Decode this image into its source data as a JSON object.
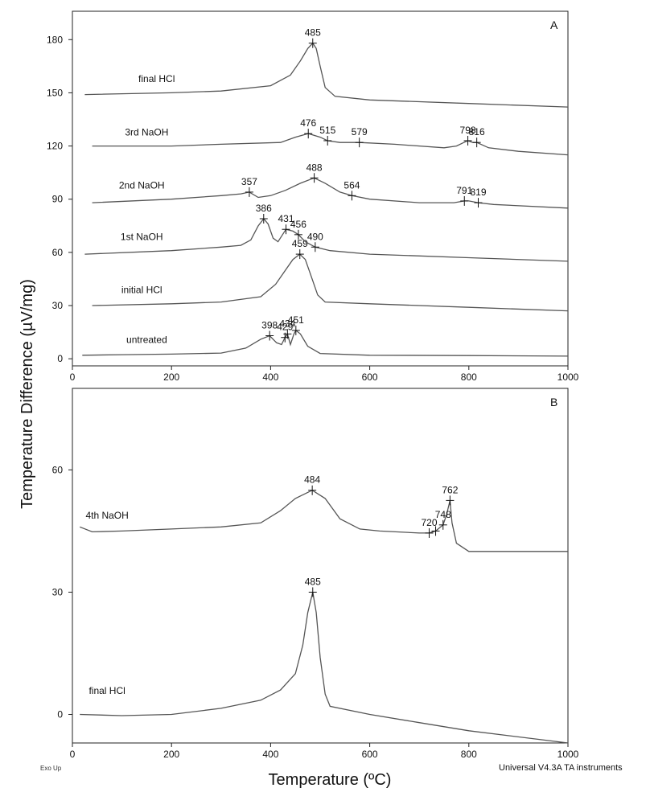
{
  "ylabel": "Temperature Difference (µV/mg)",
  "xlabel": "Temperature  (ºC)",
  "exo_label": "Exo Up",
  "footer": "Universal V4.3A TA instruments",
  "colors": {
    "curve": "#555555",
    "axis": "#222222"
  },
  "chart_data": [
    {
      "type": "line",
      "panel": "A",
      "xlim": [
        0,
        1000
      ],
      "ylim": [
        -4,
        196
      ],
      "xticks": [
        0,
        200,
        400,
        600,
        800,
        1000
      ],
      "yticks": [
        0,
        30,
        60,
        90,
        120,
        150,
        180
      ],
      "series": [
        {
          "name": "untreated",
          "label_at": [
            150,
            9
          ],
          "points": [
            [
              20,
              2
            ],
            [
              100,
              2.3
            ],
            [
              200,
              2.6
            ],
            [
              300,
              3.2
            ],
            [
              350,
              6
            ],
            [
              380,
              11
            ],
            [
              398,
              13
            ],
            [
              412,
              9
            ],
            [
              422,
              8
            ],
            [
              429,
              12
            ],
            [
              434,
              14
            ],
            [
              440,
              8
            ],
            [
              447,
              14
            ],
            [
              451,
              16
            ],
            [
              460,
              14
            ],
            [
              475,
              7
            ],
            [
              500,
              3
            ],
            [
              600,
              2
            ],
            [
              800,
              1.8
            ],
            [
              1000,
              1.5
            ]
          ],
          "peaks": [
            {
              "x": 398,
              "y": 13,
              "label": "398"
            },
            {
              "x": 429,
              "y": 12,
              "label": "429"
            },
            {
              "x": 434,
              "y": 14,
              "label": "434"
            },
            {
              "x": 451,
              "y": 16,
              "label": "451"
            }
          ]
        },
        {
          "name": "initial HCl",
          "label_at": [
            140,
            37
          ],
          "points": [
            [
              40,
              30
            ],
            [
              200,
              31
            ],
            [
              300,
              32
            ],
            [
              380,
              35
            ],
            [
              410,
              42
            ],
            [
              430,
              50
            ],
            [
              445,
              56
            ],
            [
              459,
              59
            ],
            [
              470,
              56
            ],
            [
              480,
              48
            ],
            [
              495,
              36
            ],
            [
              510,
              32
            ],
            [
              600,
              31
            ],
            [
              800,
              29
            ],
            [
              1000,
              27
            ]
          ],
          "peaks": [
            {
              "x": 459,
              "y": 59,
              "label": "459"
            }
          ]
        },
        {
          "name": "1st NaOH",
          "label_at": [
            140,
            67
          ],
          "points": [
            [
              25,
              59
            ],
            [
              200,
              61
            ],
            [
              300,
              63
            ],
            [
              340,
              64
            ],
            [
              360,
              67
            ],
            [
              375,
              75
            ],
            [
              386,
              79
            ],
            [
              395,
              76
            ],
            [
              405,
              68
            ],
            [
              415,
              66
            ],
            [
              431,
              73
            ],
            [
              445,
              72
            ],
            [
              456,
              70
            ],
            [
              470,
              66
            ],
            [
              490,
              63
            ],
            [
              520,
              61
            ],
            [
              600,
              59
            ],
            [
              800,
              57
            ],
            [
              1000,
              55
            ]
          ],
          "peaks": [
            {
              "x": 386,
              "y": 79,
              "label": "386"
            },
            {
              "x": 431,
              "y": 73,
              "label": "431"
            },
            {
              "x": 456,
              "y": 70,
              "label": "456"
            },
            {
              "x": 490,
              "y": 63,
              "label": "490"
            }
          ]
        },
        {
          "name": "2nd NaOH",
          "label_at": [
            140,
            96
          ],
          "points": [
            [
              40,
              88
            ],
            [
              200,
              90
            ],
            [
              300,
              92
            ],
            [
              340,
              93
            ],
            [
              357,
              94
            ],
            [
              375,
              91
            ],
            [
              400,
              92
            ],
            [
              430,
              95
            ],
            [
              460,
              99
            ],
            [
              488,
              102
            ],
            [
              510,
              99
            ],
            [
              540,
              94
            ],
            [
              564,
              92
            ],
            [
              600,
              90
            ],
            [
              700,
              88
            ],
            [
              770,
              88
            ],
            [
              791,
              89
            ],
            [
              800,
              89
            ],
            [
              819,
              88
            ],
            [
              850,
              87
            ],
            [
              1000,
              85
            ]
          ],
          "peaks": [
            {
              "x": 357,
              "y": 94,
              "label": "357"
            },
            {
              "x": 488,
              "y": 102,
              "label": "488"
            },
            {
              "x": 564,
              "y": 92,
              "label": "564"
            },
            {
              "x": 791,
              "y": 89,
              "label": "791"
            },
            {
              "x": 819,
              "y": 88,
              "label": "819"
            }
          ]
        },
        {
          "name": "3rd NaOH",
          "label_at": [
            150,
            126
          ],
          "points": [
            [
              40,
              120
            ],
            [
              200,
              120
            ],
            [
              300,
              121
            ],
            [
              420,
              122
            ],
            [
              450,
              125
            ],
            [
              476,
              127
            ],
            [
              500,
              125
            ],
            [
              515,
              123
            ],
            [
              540,
              122
            ],
            [
              579,
              122
            ],
            [
              650,
              121
            ],
            [
              750,
              119
            ],
            [
              775,
              120
            ],
            [
              790,
              122
            ],
            [
              798,
              123
            ],
            [
              808,
              122
            ],
            [
              816,
              122
            ],
            [
              840,
              119
            ],
            [
              900,
              117
            ],
            [
              1000,
              115
            ]
          ],
          "peaks": [
            {
              "x": 476,
              "y": 127,
              "label": "476"
            },
            {
              "x": 515,
              "y": 123,
              "label": "515"
            },
            {
              "x": 579,
              "y": 122,
              "label": "579"
            },
            {
              "x": 798,
              "y": 123,
              "label": "798"
            },
            {
              "x": 816,
              "y": 122,
              "label": "816"
            }
          ]
        },
        {
          "name": "final HCl",
          "label_at": [
            170,
            156
          ],
          "points": [
            [
              25,
              149
            ],
            [
              200,
              150
            ],
            [
              300,
              151
            ],
            [
              400,
              154
            ],
            [
              440,
              160
            ],
            [
              460,
              168
            ],
            [
              475,
              175
            ],
            [
              485,
              178
            ],
            [
              492,
              175
            ],
            [
              500,
              165
            ],
            [
              510,
              153
            ],
            [
              530,
              148
            ],
            [
              600,
              146
            ],
            [
              800,
              144
            ],
            [
              1000,
              142
            ]
          ],
          "peaks": [
            {
              "x": 485,
              "y": 178,
              "label": "485"
            }
          ]
        }
      ]
    },
    {
      "type": "line",
      "panel": "B",
      "xlim": [
        0,
        1000
      ],
      "ylim": [
        -7,
        80
      ],
      "xticks": [
        0,
        200,
        400,
        600,
        800,
        1000
      ],
      "yticks": [
        0,
        30,
        60
      ],
      "series": [
        {
          "name": "4th NaOH",
          "label_at": [
            70,
            48
          ],
          "points": [
            [
              15,
              46
            ],
            [
              40,
              44.8
            ],
            [
              100,
              45
            ],
            [
              200,
              45.5
            ],
            [
              300,
              46
            ],
            [
              380,
              47
            ],
            [
              420,
              50
            ],
            [
              450,
              53
            ],
            [
              484,
              55
            ],
            [
              510,
              53
            ],
            [
              540,
              48
            ],
            [
              580,
              45.5
            ],
            [
              620,
              45
            ],
            [
              700,
              44.5
            ],
            [
              720,
              44.5
            ],
            [
              733,
              45
            ],
            [
              748,
              46.5
            ],
            [
              755,
              49
            ],
            [
              762,
              52.5
            ],
            [
              766,
              47
            ],
            [
              775,
              42
            ],
            [
              800,
              40
            ],
            [
              900,
              40
            ],
            [
              1000,
              40
            ]
          ],
          "peaks": [
            {
              "x": 484,
              "y": 55,
              "label": "484"
            },
            {
              "x": 720,
              "y": 44.5,
              "label": "720"
            },
            {
              "x": 733,
              "y": 45,
              "label": ""
            },
            {
              "x": 748,
              "y": 46.5,
              "label": "748"
            },
            {
              "x": 762,
              "y": 52.5,
              "label": "762"
            }
          ]
        },
        {
          "name": "final HCl",
          "label_at": [
            70,
            5
          ],
          "points": [
            [
              15,
              0
            ],
            [
              100,
              -0.3
            ],
            [
              200,
              0
            ],
            [
              300,
              1.5
            ],
            [
              380,
              3.5
            ],
            [
              420,
              6
            ],
            [
              450,
              10
            ],
            [
              465,
              17
            ],
            [
              475,
              25
            ],
            [
              485,
              30
            ],
            [
              492,
              25
            ],
            [
              500,
              14
            ],
            [
              510,
              5
            ],
            [
              520,
              2
            ],
            [
              600,
              0
            ],
            [
              700,
              -2
            ],
            [
              800,
              -4
            ],
            [
              1000,
              -7
            ]
          ],
          "peaks": [
            {
              "x": 485,
              "y": 30,
              "label": "485"
            }
          ]
        }
      ]
    }
  ]
}
